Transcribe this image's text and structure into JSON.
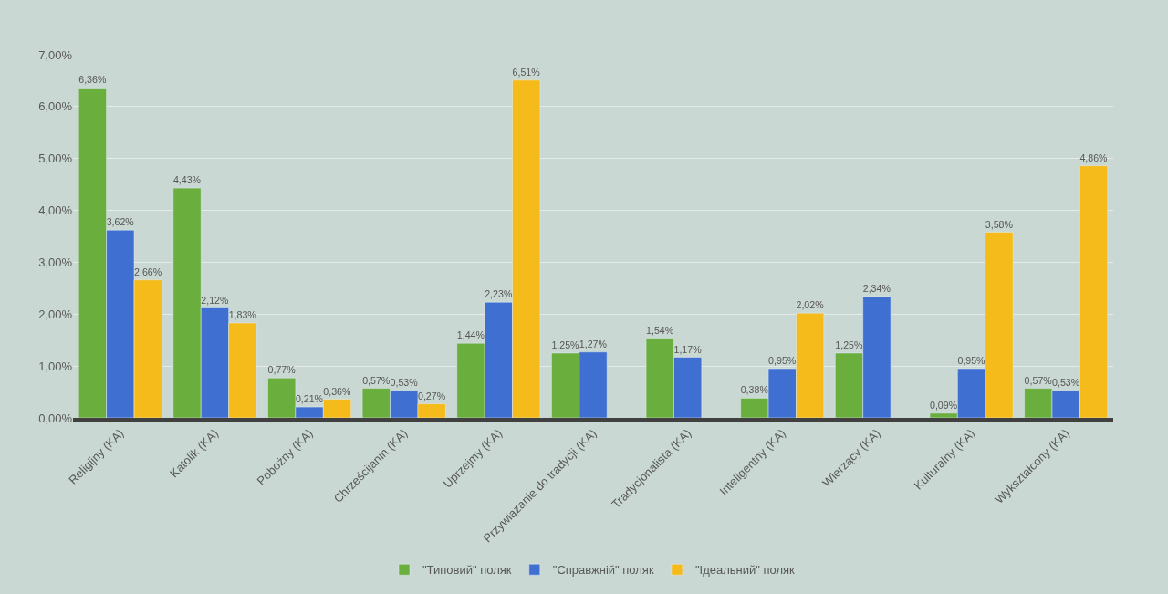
{
  "chart_data": {
    "type": "bar",
    "categories": [
      "Religijny (KA)",
      "Katolik (KA)",
      "Pobożny (KA)",
      "Chrześcijanin (KA)",
      "Uprzejmy (KA)",
      "Przywiązanie do tradycji (KA)",
      "Tradycjonalista (KA)",
      "Inteligentny (KA)",
      "Wierzący (KA)",
      "Kulturalny (KA)",
      "Wykształcony (KA)"
    ],
    "series": [
      {
        "name": "\"Типовий\" поляк",
        "color": "#6aae3e",
        "values": [
          6.36,
          4.43,
          0.77,
          0.57,
          1.44,
          1.25,
          1.54,
          0.38,
          1.25,
          0.09,
          0.57
        ],
        "value_labels": [
          "6,36%",
          "4,43%",
          "0,77%",
          "0,57%",
          "1,44%",
          "1,25%",
          "1,54%",
          "0,38%",
          "1,25%",
          "0,09%",
          "0,57%"
        ]
      },
      {
        "name": "\"Справжній\" поляк",
        "color": "#3f6fd0",
        "values": [
          3.62,
          2.12,
          0.21,
          0.53,
          2.23,
          1.27,
          1.17,
          0.95,
          2.34,
          0.95,
          0.53
        ],
        "value_labels": [
          "3,62%",
          "2,12%",
          "0,21%",
          "0,53%",
          "2,23%",
          "1,27%",
          "1,17%",
          "0,95%",
          "2,34%",
          "0,95%",
          "0,53%"
        ]
      },
      {
        "name": "\"Ідеальний\" поляк",
        "color": "#f5bb1a",
        "values": [
          2.66,
          1.83,
          0.36,
          0.27,
          6.51,
          null,
          null,
          2.02,
          null,
          3.58,
          4.86
        ],
        "value_labels": [
          "2,66%",
          "1,83%",
          "0,36%",
          "0,27%",
          "6,51%",
          null,
          null,
          "2,02%",
          null,
          "3,58%",
          "4,86%"
        ]
      }
    ],
    "ylim": [
      0,
      7
    ],
    "yticks": [
      {
        "value": 0,
        "label": "0,00%"
      },
      {
        "value": 1,
        "label": "1,00%"
      },
      {
        "value": 2,
        "label": "2,00%"
      },
      {
        "value": 3,
        "label": "3,00%"
      },
      {
        "value": 4,
        "label": "4,00%"
      },
      {
        "value": 5,
        "label": "5,00%"
      },
      {
        "value": 6,
        "label": "6,00%"
      },
      {
        "value": 7,
        "label": "7,00%"
      }
    ],
    "grid": "y",
    "legend": "bottom"
  }
}
